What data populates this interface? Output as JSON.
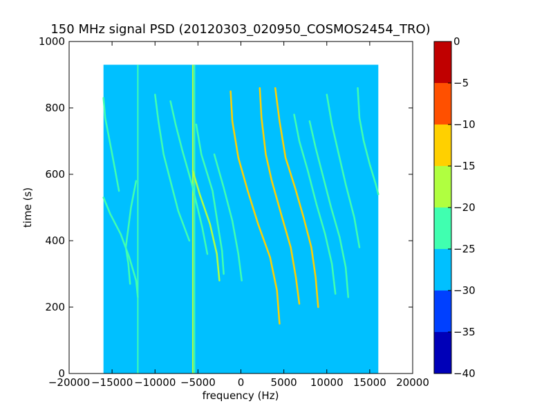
{
  "chart_data": {
    "type": "heatmap",
    "title": "150 MHz signal PSD (20120303_020950_COSMOS2454_TRO)",
    "xlabel": "frequency (Hz)",
    "ylabel": "time (s)",
    "xlim": [
      -20000,
      20000
    ],
    "ylim": [
      0,
      1000
    ],
    "x_ticks": [
      -20000,
      -15000,
      -10000,
      -5000,
      0,
      5000,
      10000,
      15000,
      20000
    ],
    "x_tick_labels": [
      "−20000",
      "−15000",
      "−10000",
      "−5000",
      "0",
      "5000",
      "10000",
      "15000",
      "20000"
    ],
    "y_ticks": [
      0,
      200,
      400,
      600,
      800,
      1000
    ],
    "y_tick_labels": [
      "0",
      "200",
      "400",
      "600",
      "800",
      "1000"
    ],
    "data_extent": {
      "x": [
        -16000,
        16000
      ],
      "y": [
        0,
        930
      ]
    },
    "background_level": -27.5,
    "colorbar": {
      "levels": [
        -40,
        -35,
        -30,
        -25,
        -20,
        -15,
        -10,
        -5,
        0
      ],
      "tick_labels": [
        "−40",
        "−35",
        "−30",
        "−25",
        "−20",
        "−15",
        "−10",
        "−5",
        "0"
      ],
      "colors": [
        "#0000b8",
        "#0040ff",
        "#00c0ff",
        "#40ffb0",
        "#b0ff40",
        "#ffd000",
        "#ff5000",
        "#c00000"
      ]
    },
    "traces": [
      {
        "points": [
          [
            -16000,
            830
          ],
          [
            -15800,
            770
          ],
          [
            -15200,
            690
          ],
          [
            -14700,
            620
          ],
          [
            -14200,
            550
          ]
        ],
        "level": -22.5
      },
      {
        "points": [
          [
            -16000,
            530
          ],
          [
            -15200,
            480
          ],
          [
            -14000,
            420
          ],
          [
            -13000,
            350
          ],
          [
            -12200,
            280
          ],
          [
            -12000,
            230
          ]
        ],
        "level": -22.5
      },
      {
        "points": [
          [
            -12200,
            580
          ],
          [
            -12800,
            500
          ],
          [
            -13400,
            380
          ],
          [
            -13100,
            330
          ],
          [
            -12900,
            270
          ]
        ],
        "level": -22.5
      },
      {
        "points": [
          [
            -10000,
            840
          ],
          [
            -9600,
            760
          ],
          [
            -9000,
            660
          ],
          [
            -8200,
            580
          ],
          [
            -7300,
            490
          ],
          [
            -6000,
            400
          ]
        ],
        "level": -22.5
      },
      {
        "points": [
          [
            -8200,
            820
          ],
          [
            -7600,
            750
          ],
          [
            -6800,
            670
          ],
          [
            -5700,
            570
          ],
          [
            -4500,
            440
          ],
          [
            -3900,
            360
          ]
        ],
        "level": -22.5
      },
      {
        "points": [
          [
            -5200,
            750
          ],
          [
            -4600,
            660
          ],
          [
            -3300,
            550
          ],
          [
            -2700,
            450
          ],
          [
            -2200,
            370
          ],
          [
            -2000,
            300
          ]
        ],
        "level": -22.5
      },
      {
        "points": [
          [
            -3100,
            660
          ],
          [
            -2000,
            560
          ],
          [
            -1000,
            460
          ],
          [
            -300,
            360
          ],
          [
            100,
            280
          ]
        ],
        "level": -22.5
      },
      {
        "points": [
          [
            -5600,
            610
          ],
          [
            -4800,
            540
          ],
          [
            -3600,
            450
          ],
          [
            -2800,
            360
          ],
          [
            -2500,
            280
          ]
        ],
        "level": -17.5
      },
      {
        "points": [
          [
            -1200,
            850
          ],
          [
            -1000,
            760
          ],
          [
            -300,
            650
          ],
          [
            800,
            550
          ],
          [
            2000,
            450
          ],
          [
            3400,
            350
          ],
          [
            4200,
            250
          ],
          [
            4500,
            150
          ]
        ],
        "level": -12.5
      },
      {
        "points": [
          [
            2200,
            860
          ],
          [
            2400,
            770
          ],
          [
            2900,
            660
          ],
          [
            3600,
            580
          ],
          [
            4800,
            470
          ],
          [
            5800,
            380
          ],
          [
            6400,
            290
          ],
          [
            6800,
            210
          ]
        ],
        "level": -12.5
      },
      {
        "points": [
          [
            4000,
            860
          ],
          [
            4500,
            760
          ],
          [
            5200,
            650
          ],
          [
            6300,
            560
          ],
          [
            7300,
            470
          ],
          [
            8200,
            380
          ],
          [
            8700,
            290
          ],
          [
            9000,
            200
          ]
        ],
        "level": -12.5
      },
      {
        "points": [
          [
            6200,
            780
          ],
          [
            6800,
            700
          ],
          [
            7800,
            610
          ],
          [
            8800,
            510
          ],
          [
            9800,
            420
          ],
          [
            10600,
            330
          ],
          [
            11000,
            240
          ]
        ],
        "level": -22.5
      },
      {
        "points": [
          [
            8000,
            760
          ],
          [
            8700,
            680
          ],
          [
            9600,
            590
          ],
          [
            10500,
            500
          ],
          [
            11500,
            410
          ],
          [
            12200,
            320
          ],
          [
            12500,
            230
          ]
        ],
        "level": -22.5
      },
      {
        "points": [
          [
            10000,
            840
          ],
          [
            10600,
            750
          ],
          [
            11400,
            660
          ],
          [
            12200,
            570
          ],
          [
            13200,
            470
          ],
          [
            13800,
            380
          ]
        ],
        "level": -22.5
      },
      {
        "points": [
          [
            13600,
            860
          ],
          [
            13800,
            770
          ],
          [
            14300,
            700
          ],
          [
            15000,
            630
          ],
          [
            15700,
            570
          ],
          [
            16000,
            540
          ]
        ],
        "level": -22.5
      }
    ],
    "vertical_lines": [
      {
        "x": -12000,
        "y": [
          0,
          930
        ],
        "level": -22.5
      },
      {
        "x": -5600,
        "y": [
          0,
          930
        ],
        "level": -17.5
      },
      {
        "x": -5400,
        "y": [
          0,
          930
        ],
        "level": -22.5
      }
    ]
  }
}
